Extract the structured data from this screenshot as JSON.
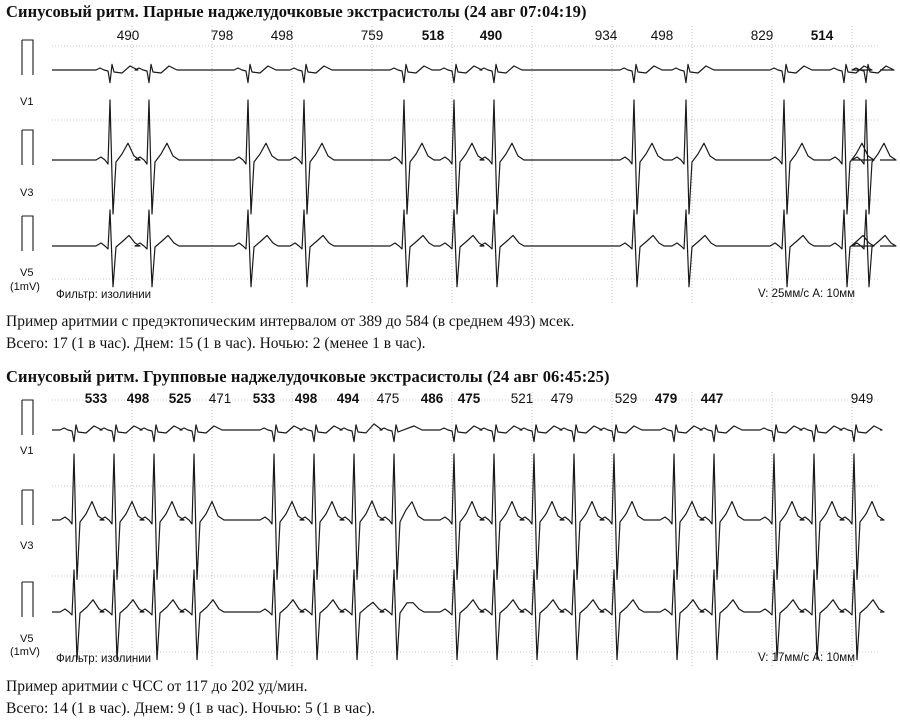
{
  "sections": [
    {
      "title": "Синусовый ритм. Парные наджелудочковые экстрасистолы (24 авг 07:04:19)",
      "leads": [
        "V1",
        "V3",
        "V5"
      ],
      "calibration": "(1mV)",
      "filter": "Фильтр: изолинии",
      "scale": "V: 25мм/с  A: 10мм",
      "rr_intervals": [
        {
          "value": "490",
          "bold": false
        },
        {
          "value": "798",
          "bold": false
        },
        {
          "value": "498",
          "bold": false
        },
        {
          "value": "759",
          "bold": false
        },
        {
          "value": "518",
          "bold": true
        },
        {
          "value": "490",
          "bold": true
        },
        {
          "value": "934",
          "bold": false
        },
        {
          "value": "498",
          "bold": false
        },
        {
          "value": "829",
          "bold": false
        },
        {
          "value": "514",
          "bold": true
        }
      ],
      "description": "Пример аритмии  с предэктопическим интервалом от 389 до 584 (в среднем 493) мсек.",
      "totals": "Всего: 17 (1 в час). Днем: 15 (1 в час). Ночью: 2 (менее 1 в час)."
    },
    {
      "title": "Синусовый ритм. Групповые наджелудочковые экстрасистолы (24 авг 06:45:25)",
      "leads": [
        "V1",
        "V3",
        "V5"
      ],
      "calibration": "(1mV)",
      "filter": "Фильтр: изолинии",
      "scale": "V: 17мм/с  A: 10мм",
      "rr_intervals": [
        {
          "value": "533",
          "bold": true
        },
        {
          "value": "498",
          "bold": true
        },
        {
          "value": "525",
          "bold": true
        },
        {
          "value": "471",
          "bold": false
        },
        {
          "value": "533",
          "bold": true
        },
        {
          "value": "498",
          "bold": true
        },
        {
          "value": "494",
          "bold": true
        },
        {
          "value": "475",
          "bold": false
        },
        {
          "value": "486",
          "bold": true
        },
        {
          "value": "475",
          "bold": true
        },
        {
          "value": "521",
          "bold": false
        },
        {
          "value": "479",
          "bold": false
        },
        {
          "value": "529",
          "bold": false
        },
        {
          "value": "479",
          "bold": true
        },
        {
          "value": "447",
          "bold": true
        },
        {
          "value": "949",
          "bold": false
        }
      ],
      "description": "Пример аритмии  с ЧСС от 117 до 202 уд/мин.",
      "totals": "Всего: 14 (1 в час). Днем: 9 (1 в час). Ночью: 5 (1 в час)."
    }
  ],
  "colors": {
    "trace": "#1a1a1a",
    "grid": "#9a9a9a",
    "background": "#ffffff"
  }
}
